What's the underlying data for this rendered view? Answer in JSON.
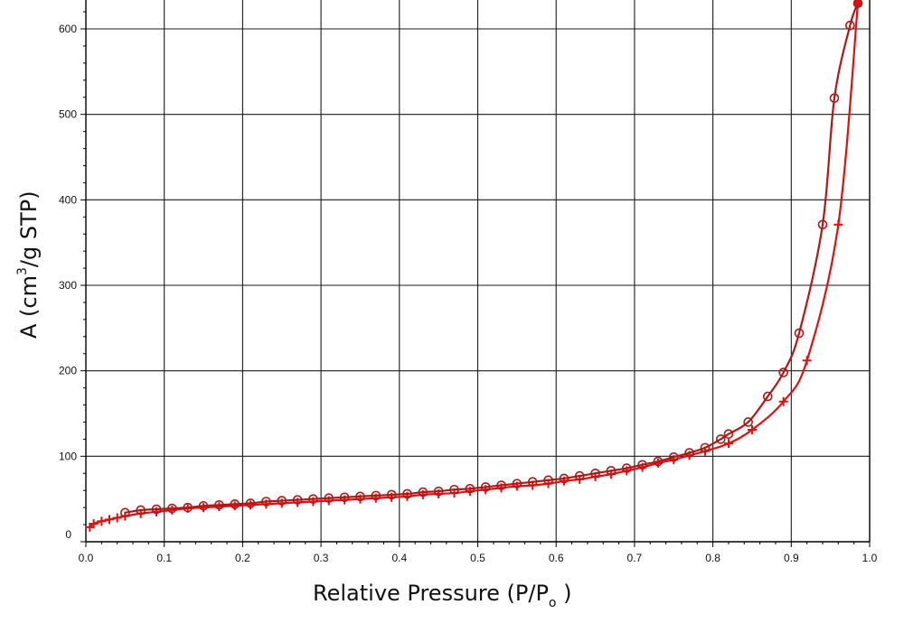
{
  "chart_data": {
    "type": "line",
    "title": "",
    "xlabel": "Relative Pressure (P/P",
    "xlabel_sub": "o",
    "xlabel_close": " )",
    "ylabel": "A (cm",
    "ylabel_sup": "3",
    "ylabel_rest": "/g STP)",
    "xlim": [
      0.0,
      1.0
    ],
    "ylim": [
      0,
      630
    ],
    "x_ticks": [
      0.0,
      0.1,
      0.2,
      0.3,
      0.4,
      0.5,
      0.6,
      0.7,
      0.8,
      0.9,
      1.0
    ],
    "x_tick_labels": [
      "0.0",
      "0.1",
      "0.2",
      "0.3",
      "0.4",
      "0.5",
      "0.6",
      "0.7",
      "0.8",
      "0.9",
      "1.0"
    ],
    "y_ticks": [
      0,
      100,
      200,
      300,
      400,
      500,
      600
    ],
    "y_tick_labels": [
      "0",
      "100",
      "200",
      "300",
      "400",
      "500",
      "600"
    ],
    "grid": true,
    "legend": "none",
    "series": [
      {
        "marker": "plus",
        "color": "#e01010",
        "x": [
          0.005,
          0.01,
          0.02,
          0.03,
          0.04,
          0.05,
          0.07,
          0.09,
          0.11,
          0.13,
          0.15,
          0.17,
          0.19,
          0.21,
          0.23,
          0.25,
          0.27,
          0.29,
          0.31,
          0.33,
          0.35,
          0.37,
          0.39,
          0.41,
          0.43,
          0.45,
          0.47,
          0.49,
          0.51,
          0.53,
          0.55,
          0.57,
          0.59,
          0.61,
          0.63,
          0.65,
          0.67,
          0.69,
          0.71,
          0.73,
          0.75,
          0.77,
          0.79,
          0.82,
          0.85,
          0.89,
          0.92,
          0.96,
          0.985
        ],
        "y": [
          17,
          21,
          24,
          26,
          28,
          30,
          33,
          35,
          37,
          39,
          40,
          41,
          42,
          43,
          44,
          45,
          46,
          47,
          48,
          49,
          50,
          51,
          52,
          53,
          55,
          56,
          57,
          59,
          61,
          63,
          65,
          66,
          68,
          71,
          73,
          76,
          79,
          83,
          87,
          92,
          96,
          101,
          106,
          115,
          131,
          164,
          212,
          371,
          630
        ]
      },
      {
        "marker": "circle",
        "color": "#b01818",
        "x": [
          0.05,
          0.07,
          0.09,
          0.11,
          0.13,
          0.15,
          0.17,
          0.19,
          0.21,
          0.23,
          0.25,
          0.27,
          0.29,
          0.31,
          0.33,
          0.35,
          0.37,
          0.39,
          0.41,
          0.43,
          0.45,
          0.47,
          0.49,
          0.51,
          0.53,
          0.55,
          0.57,
          0.59,
          0.61,
          0.63,
          0.65,
          0.67,
          0.69,
          0.71,
          0.73,
          0.75,
          0.77,
          0.79,
          0.81,
          0.82,
          0.845,
          0.87,
          0.89,
          0.91,
          0.94,
          0.955,
          0.975,
          0.985
        ],
        "y": [
          34,
          37,
          38,
          39,
          40,
          42,
          43,
          44,
          45,
          47,
          48,
          49,
          50,
          51,
          52,
          53,
          54,
          55,
          56,
          58,
          59,
          61,
          62,
          64,
          66,
          68,
          70,
          72,
          74,
          77,
          80,
          83,
          86,
          90,
          94,
          99,
          104,
          110,
          120,
          126,
          140,
          170,
          198,
          244,
          371,
          519,
          604,
          630
        ]
      }
    ]
  }
}
